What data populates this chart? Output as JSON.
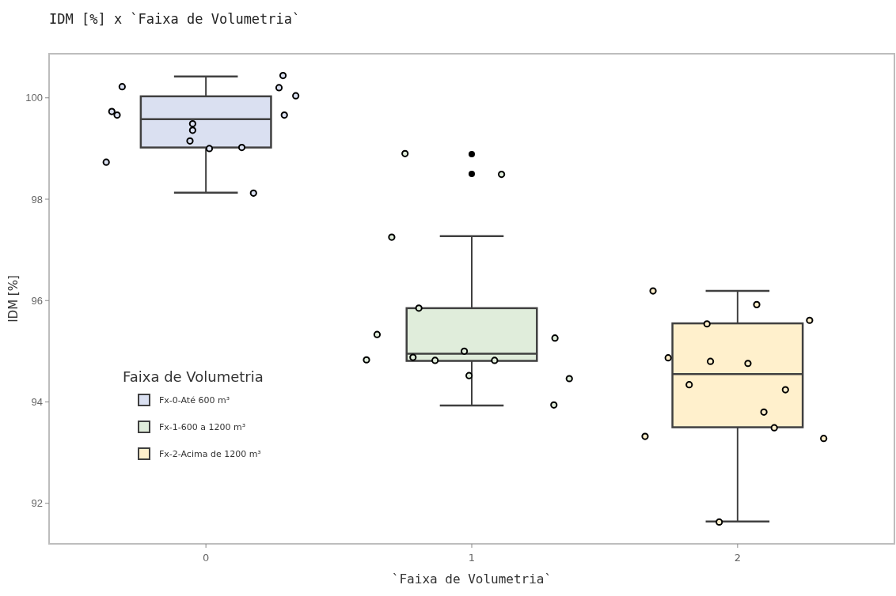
{
  "chart_data": {
    "type": "box",
    "title": "IDM [%] x `Faixa de Volumetria`",
    "xlabel": "`Faixa de Volumetria`",
    "ylabel": "IDM [%]",
    "legend_title": "Faixa de Volumetria",
    "legend": "bottom left",
    "marker": "circle",
    "x": [
      0,
      1,
      2
    ],
    "xlim": [
      -0.59,
      2.59
    ],
    "xticks": [
      0,
      1,
      2
    ],
    "ylim": [
      91.2,
      100.87
    ],
    "yticks": [
      92,
      94,
      96,
      98,
      100
    ],
    "series": [
      {
        "name": "Fx-0-Até 600 m³",
        "color": "#dae0f1",
        "boxes": [
          {
            "low": 98.13,
            "q1": 99.02,
            "median": 99.58,
            "q3": 100.03,
            "high": 100.42
          },
          null,
          null
        ]
      },
      {
        "name": "Fx-1-600 a 1200 m³",
        "color": "#e0eddb",
        "boxes": [
          null,
          {
            "low": 93.93,
            "q1": 94.81,
            "median": 94.95,
            "q3": 95.85,
            "high": 97.27,
            "outliers": [
              98.89,
              98.5
            ]
          },
          null
        ]
      },
      {
        "name": "Fx-2-Acima de 1200 m³",
        "color": "#fff0cc",
        "boxes": [
          null,
          null,
          {
            "low": 91.64,
            "q1": 93.5,
            "median": 94.55,
            "q3": 95.55,
            "high": 96.19
          }
        ]
      },
      {
        "type": "scatter",
        "color": "#dae0f1",
        "x": [
          -0.315,
          -0.354,
          -0.334,
          -0.375,
          -0.05,
          -0.05,
          -0.06,
          0.013,
          0.135,
          0.179,
          0.29,
          0.275,
          0.338,
          0.295
        ],
        "values": [
          100.22,
          99.73,
          99.66,
          98.73,
          99.49,
          99.36,
          99.15,
          99.0,
          99.02,
          98.12,
          100.44,
          100.2,
          100.04,
          99.66
        ]
      },
      {
        "type": "scatter",
        "color": "#e0eddb",
        "x": [
          0.749,
          1.112,
          0.699,
          0.801,
          0.644,
          0.604,
          0.779,
          0.862,
          0.972,
          1.086,
          0.99,
          1.313,
          1.367,
          1.309
        ],
        "values": [
          98.9,
          98.49,
          97.25,
          95.85,
          95.33,
          94.83,
          94.88,
          94.82,
          95.0,
          94.82,
          94.52,
          95.26,
          94.46,
          93.94
        ]
      },
      {
        "type": "scatter",
        "color": "#fff0cc",
        "x": [
          1.682,
          2.072,
          2.271,
          1.885,
          1.739,
          1.898,
          2.039,
          1.818,
          2.18,
          2.099,
          2.138,
          1.652,
          2.324,
          1.931
        ],
        "values": [
          96.19,
          95.92,
          95.61,
          95.54,
          94.87,
          94.8,
          94.76,
          94.34,
          94.24,
          93.8,
          93.49,
          93.32,
          93.28,
          91.63
        ]
      }
    ]
  }
}
